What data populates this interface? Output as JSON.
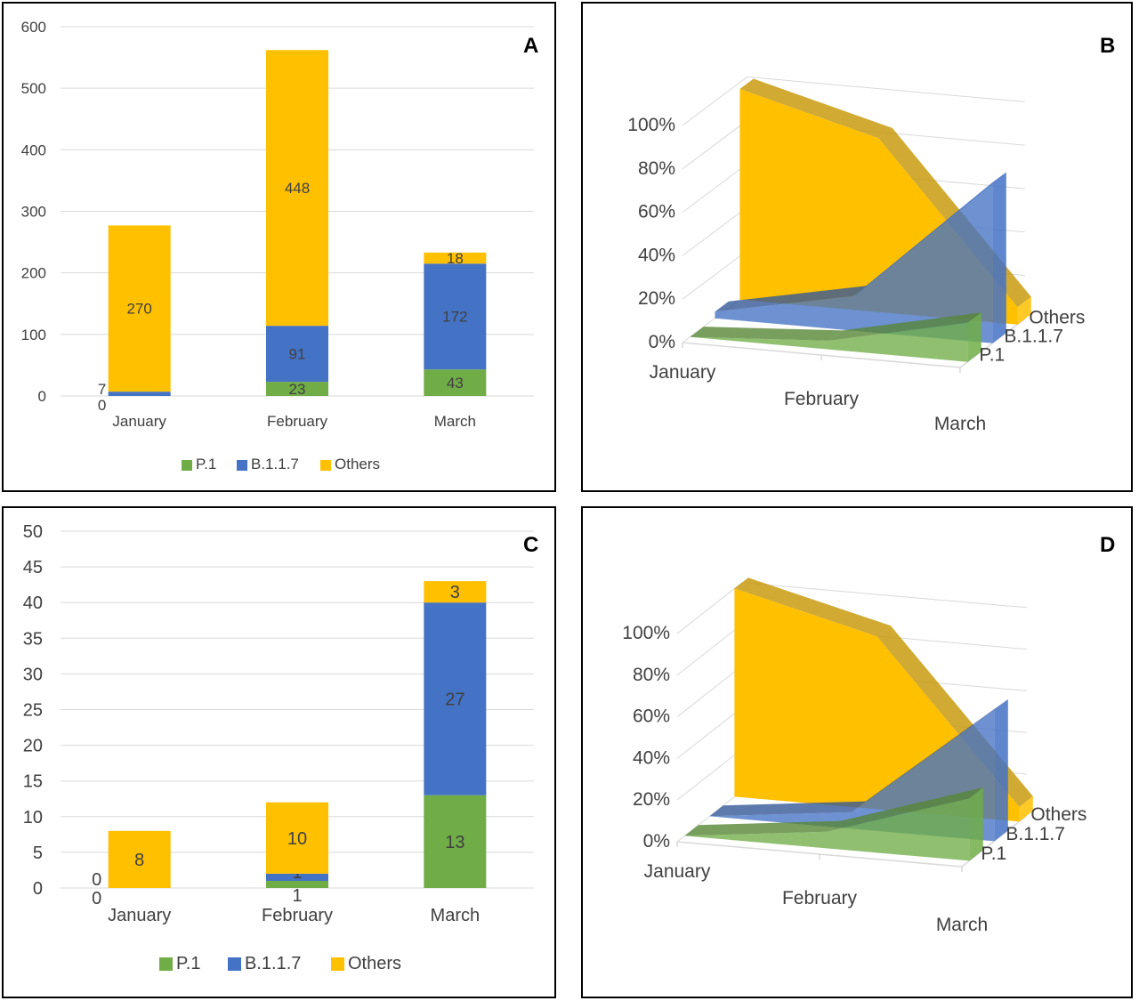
{
  "colors": {
    "p1": "#70ad47",
    "b117": "#4472c4",
    "others": "#ffc000",
    "grid": "#d9d9d9",
    "text": "#404040"
  },
  "panels": [
    {
      "letter": "A",
      "legend": [
        "P.1",
        "B.1.1.7",
        "Others"
      ]
    },
    {
      "letter": "B"
    },
    {
      "letter": "C",
      "legend": [
        "P.1",
        "B.1.1.7",
        "Others"
      ]
    },
    {
      "letter": "D"
    }
  ],
  "chart_data": [
    {
      "panel": "A",
      "type": "bar",
      "stacked": true,
      "categories": [
        "January",
        "February",
        "March"
      ],
      "series": [
        {
          "name": "P.1",
          "color": "#70ad47",
          "values": [
            0,
            23,
            43
          ]
        },
        {
          "name": "B.1.1.7",
          "color": "#4472c4",
          "values": [
            7,
            91,
            172
          ]
        },
        {
          "name": "Others",
          "color": "#ffc000",
          "values": [
            270,
            448,
            18
          ]
        }
      ],
      "y_ticks": [
        "0",
        "100",
        "200",
        "300",
        "400",
        "500",
        "600"
      ],
      "ylim": [
        0,
        600
      ],
      "grid": true,
      "legend_position": "bottom"
    },
    {
      "panel": "B",
      "type": "area",
      "style": "3d-area-100-percent",
      "categories": [
        "January",
        "February",
        "March"
      ],
      "series_axis": [
        "P.1",
        "B.1.1.7",
        "Others"
      ],
      "y_ticks": [
        "0%",
        "20%",
        "40%",
        "60%",
        "80%",
        "100%"
      ],
      "ylim": [
        0,
        100
      ],
      "series": [
        {
          "name": "P.1",
          "color": "#70ad47",
          "values": [
            0,
            4,
            18
          ]
        },
        {
          "name": "B.1.1.7",
          "color": "#4472c4",
          "values": [
            3,
            16,
            74
          ]
        },
        {
          "name": "Others",
          "color": "#ffc000",
          "values": [
            97,
            80,
            8
          ]
        }
      ]
    },
    {
      "panel": "C",
      "type": "bar",
      "stacked": true,
      "categories": [
        "January",
        "February",
        "March"
      ],
      "series": [
        {
          "name": "P.1",
          "color": "#70ad47",
          "values": [
            0,
            1,
            13
          ]
        },
        {
          "name": "B.1.1.7",
          "color": "#4472c4",
          "values": [
            0,
            1,
            27
          ]
        },
        {
          "name": "Others",
          "color": "#ffc000",
          "values": [
            8,
            10,
            3
          ]
        }
      ],
      "y_ticks": [
        "0",
        "5",
        "10",
        "15",
        "20",
        "25",
        "30",
        "35",
        "40",
        "45",
        "50"
      ],
      "ylim": [
        0,
        50
      ],
      "grid": true,
      "legend_position": "bottom"
    },
    {
      "panel": "D",
      "type": "area",
      "style": "3d-area-100-percent",
      "categories": [
        "January",
        "February",
        "March"
      ],
      "series_axis": [
        "P.1",
        "B.1.1.7",
        "Others"
      ],
      "y_ticks": [
        "0%",
        "20%",
        "40%",
        "60%",
        "80%",
        "100%"
      ],
      "ylim": [
        0,
        100
      ],
      "series": [
        {
          "name": "P.1",
          "color": "#70ad47",
          "values": [
            0,
            8,
            30
          ]
        },
        {
          "name": "B.1.1.7",
          "color": "#4472c4",
          "values": [
            0,
            8,
            63
          ]
        },
        {
          "name": "Others",
          "color": "#ffc000",
          "values": [
            100,
            83,
            7
          ]
        }
      ]
    }
  ]
}
